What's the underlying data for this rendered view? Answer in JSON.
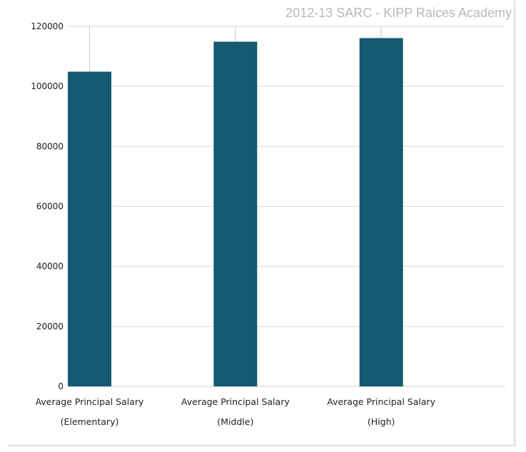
{
  "chart_data": {
    "type": "bar",
    "title": "2012-13 SARC - KIPP Raices Academy",
    "categories": [
      [
        "Average Principal Salary",
        "(Elementary)"
      ],
      [
        "Average Principal Salary",
        "(Middle)"
      ],
      [
        "Average Principal Salary",
        "(High)"
      ]
    ],
    "values": [
      104900,
      114900,
      116100
    ],
    "ylim": [
      0,
      120000
    ],
    "yticks": [
      0,
      20000,
      40000,
      60000,
      80000,
      100000,
      120000
    ],
    "grid": true,
    "legend": "none",
    "colors": {
      "bar": "#135a72",
      "grid": "#d9d9d9",
      "axis": "#c8c8c8"
    }
  }
}
